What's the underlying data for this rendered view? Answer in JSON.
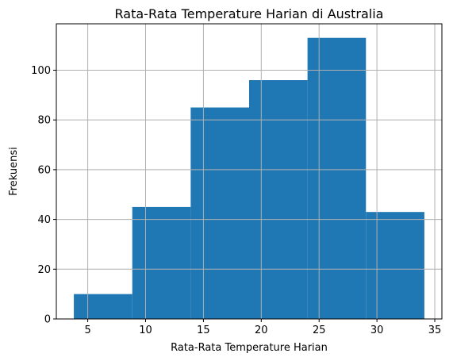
{
  "chart_data": {
    "type": "bar",
    "histogram": true,
    "title": "Rata-Rata Temperature Harian di Australia",
    "xlabel": "Rata-Rata Temperature Harian",
    "ylabel": "Frekuensi",
    "bins": [
      {
        "x0": 3.8,
        "x1": 8.85,
        "count": 10
      },
      {
        "x0": 8.85,
        "x1": 13.9,
        "count": 45
      },
      {
        "x0": 13.9,
        "x1": 18.95,
        "count": 85
      },
      {
        "x0": 18.95,
        "x1": 24.0,
        "count": 96
      },
      {
        "x0": 24.0,
        "x1": 29.05,
        "count": 113
      },
      {
        "x0": 29.05,
        "x1": 34.1,
        "count": 43
      }
    ],
    "xlim": [
      2.285,
      35.615
    ],
    "ylim": [
      0,
      118.65
    ],
    "xticks": [
      5,
      10,
      15,
      20,
      25,
      30,
      35
    ],
    "yticks": [
      0,
      20,
      40,
      60,
      80,
      100
    ],
    "grid": true,
    "bar_color": "#1f77b4"
  }
}
